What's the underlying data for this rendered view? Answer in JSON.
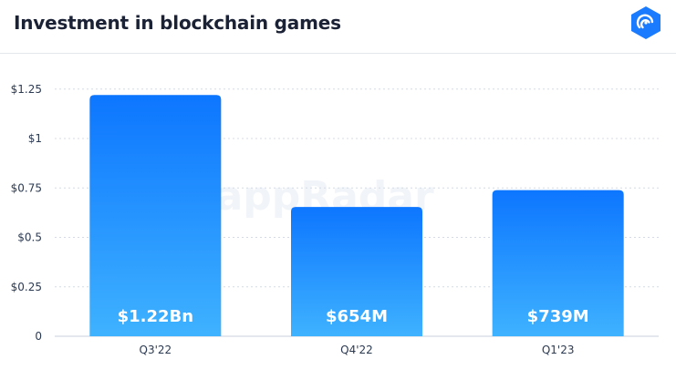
{
  "header": {
    "title": "Investment in blockchain games",
    "logo_icon": "dappradar-logo-icon",
    "watermark": "DappRadar"
  },
  "colors": {
    "bar_top": "#0d76ff",
    "bar_bottom": "#3fb2ff",
    "grid": "#d4dbe6",
    "axis_text": "#2c3a52",
    "bar_label": "#ffffff",
    "logo": "#1a7bff"
  },
  "chart_data": {
    "type": "bar",
    "categories": [
      "Q3'22",
      "Q4'22",
      "Q1'23"
    ],
    "values": [
      1.22,
      0.654,
      0.739
    ],
    "data_labels": [
      "$1.22Bn",
      "$654M",
      "$739M"
    ],
    "yticks": [
      0,
      0.25,
      0.5,
      0.75,
      1,
      1.25
    ],
    "ytick_labels": [
      "0",
      "$0.25",
      "$0.5",
      "$0.75",
      "$1",
      "$1.25"
    ],
    "ylim": [
      0,
      1.3
    ],
    "grid": true,
    "title": "Investment in blockchain games"
  }
}
